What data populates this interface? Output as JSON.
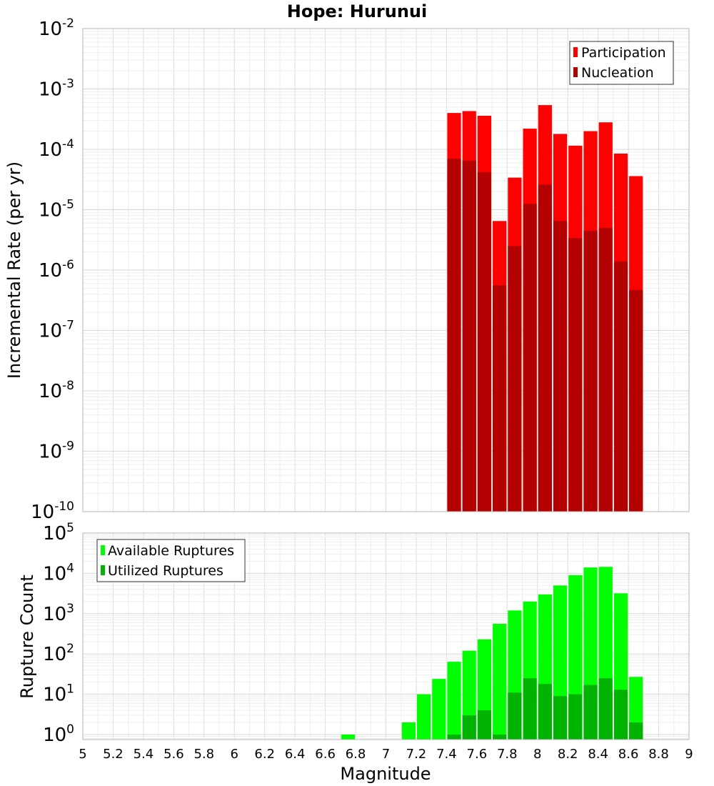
{
  "chart_data": [
    {
      "type": "bar",
      "title": "Hope: Hurunui",
      "ylabel": "Incremental Rate (per yr)",
      "xlabel": "",
      "xlim": [
        5,
        9
      ],
      "ylim": [
        1e-10,
        0.01
      ],
      "yscale": "log",
      "grid": true,
      "legend_position": "top-right",
      "bar_width": 0.1,
      "x": [
        7.45,
        7.55,
        7.65,
        7.75,
        7.85,
        7.95,
        8.05,
        8.15,
        8.25,
        8.35,
        8.45,
        8.55,
        8.65
      ],
      "series": [
        {
          "name": "Participation",
          "color": "#ff0000",
          "values": [
            0.0004,
            0.00043,
            0.00036,
            6.5e-06,
            3.4e-05,
            0.00022,
            0.00054,
            0.00018,
            0.000115,
            0.0002,
            0.00028,
            8.5e-05,
            3.6e-05
          ]
        },
        {
          "name": "Nucleation",
          "color": "#b30000",
          "values": [
            7e-05,
            6.5e-05,
            4.2e-05,
            5.6e-07,
            2.5e-06,
            1.25e-05,
            2.6e-05,
            6.5e-06,
            3.4e-06,
            4.5e-06,
            5e-06,
            1.4e-06,
            4.7e-07
          ]
        }
      ],
      "yticks": [
        {
          "base": "10",
          "exp": "-2"
        },
        {
          "base": "10",
          "exp": "-3"
        },
        {
          "base": "10",
          "exp": "-4"
        },
        {
          "base": "10",
          "exp": "-5"
        },
        {
          "base": "10",
          "exp": "-6"
        },
        {
          "base": "10",
          "exp": "-7"
        },
        {
          "base": "10",
          "exp": "-8"
        },
        {
          "base": "10",
          "exp": "-9"
        },
        {
          "base": "10",
          "exp": "-10"
        }
      ]
    },
    {
      "type": "bar",
      "title": "",
      "ylabel": "Rupture Count",
      "xlabel": "Magnitude",
      "xlim": [
        5,
        9
      ],
      "ylim": [
        0.75,
        100000.0
      ],
      "yscale": "log",
      "grid": true,
      "legend_position": "top-left",
      "bar_width": 0.1,
      "x": [
        6.75,
        7.15,
        7.25,
        7.35,
        7.45,
        7.55,
        7.65,
        7.75,
        7.85,
        7.95,
        8.05,
        8.15,
        8.25,
        8.35,
        8.45,
        8.55,
        8.65
      ],
      "series": [
        {
          "name": "Available Ruptures",
          "color": "#00ff00",
          "values": [
            1,
            2,
            10,
            24,
            64,
            120,
            230,
            560,
            1200,
            2000,
            3000,
            5000,
            9000,
            14000,
            14500,
            3200,
            27
          ]
        },
        {
          "name": "Utilized Ruptures",
          "color": "#00b300",
          "values": [
            0,
            0,
            0,
            0,
            1,
            3,
            4,
            1,
            11,
            25,
            18,
            9,
            10,
            17,
            25,
            13,
            2
          ]
        }
      ],
      "xticks": [
        "5",
        "5.2",
        "5.4",
        "5.6",
        "5.8",
        "6",
        "6.2",
        "6.4",
        "6.6",
        "6.8",
        "7",
        "7.2",
        "7.4",
        "7.6",
        "7.8",
        "8",
        "8.2",
        "8.4",
        "8.6",
        "8.8",
        "9"
      ],
      "yticks": [
        {
          "base": "10",
          "exp": "5"
        },
        {
          "base": "10",
          "exp": "4"
        },
        {
          "base": "10",
          "exp": "3"
        },
        {
          "base": "10",
          "exp": "2"
        },
        {
          "base": "10",
          "exp": "1"
        },
        {
          "base": "10",
          "exp": "0"
        }
      ]
    }
  ]
}
